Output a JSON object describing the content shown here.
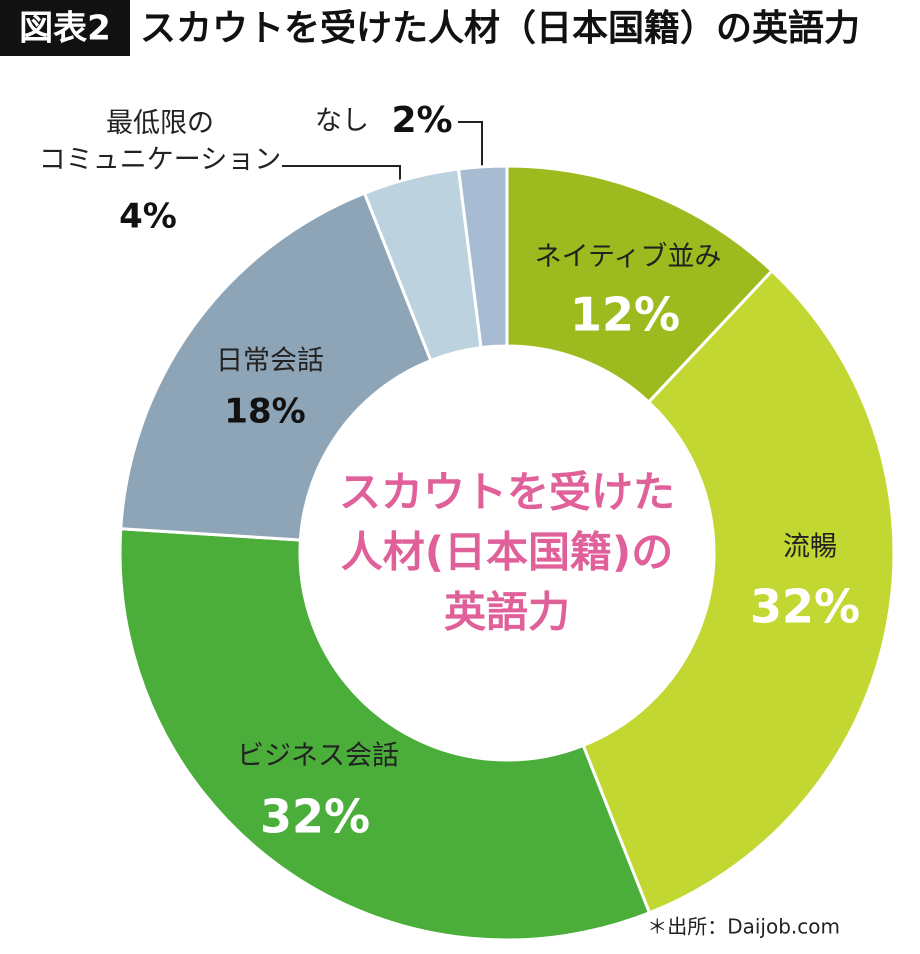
{
  "chart_data": {
    "type": "donut",
    "badge": "図表2",
    "title": "スカウトを受けた人材（日本国籍）の英語力",
    "center_text": [
      "スカウトを受けた",
      "人材(日本国籍)の",
      "英語力"
    ],
    "source": "＊出所：Daijob.com",
    "categories": [
      "ネイティブ並み",
      "流暢",
      "ビジネス会話",
      "日常会話",
      "最低限の\nコミュニケーション",
      "なし"
    ],
    "values": [
      12,
      32,
      32,
      18,
      4,
      2
    ],
    "value_labels": [
      "12%",
      "32%",
      "32%",
      "18%",
      "4%",
      "2%"
    ],
    "colors": [
      "#9dbb1e",
      "#c3d733",
      "#4bae3b",
      "#8ea4b7",
      "#bcd3df",
      "#a7bbd3"
    ]
  }
}
